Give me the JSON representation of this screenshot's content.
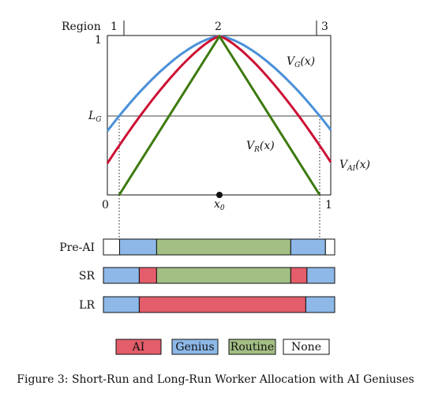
{
  "figure": {
    "region_label": "Region",
    "region_numbers": [
      "1",
      "2",
      "3"
    ],
    "y_tick_top": "1",
    "lg_label": "L",
    "lg_sub": "G",
    "x_tick_left": "0",
    "x_tick_right": "1",
    "x0_label": "x",
    "x0_sub": "0",
    "caption": "Figure 3: Short-Run and Long-Run Worker Allocation with AI Geniuses"
  },
  "curves": {
    "vg": {
      "base": "V",
      "sub": "G",
      "arg": "(x)",
      "color": "#4a90d9"
    },
    "vai": {
      "base": "V",
      "sub": "AI",
      "arg": "(x)",
      "color": "#cc1133"
    },
    "vr": {
      "base": "V",
      "sub": "R",
      "arg": "(x)",
      "color": "#3d7a0e"
    }
  },
  "allocation_rows": [
    {
      "label": "Pre-AI",
      "segments": [
        {
          "type": "None",
          "from": 0.0,
          "to": 0.07
        },
        {
          "type": "Genius",
          "from": 0.07,
          "to": 0.23
        },
        {
          "type": "Routine",
          "from": 0.23,
          "to": 0.81
        },
        {
          "type": "Genius",
          "from": 0.81,
          "to": 0.96
        },
        {
          "type": "None",
          "from": 0.96,
          "to": 1.0
        }
      ]
    },
    {
      "label": "SR",
      "segments": [
        {
          "type": "Genius",
          "from": 0.0,
          "to": 0.155
        },
        {
          "type": "AI",
          "from": 0.155,
          "to": 0.23
        },
        {
          "type": "Routine",
          "from": 0.23,
          "to": 0.81
        },
        {
          "type": "AI",
          "from": 0.81,
          "to": 0.88
        },
        {
          "type": "Genius",
          "from": 0.88,
          "to": 1.0
        }
      ]
    },
    {
      "label": "LR",
      "segments": [
        {
          "type": "Genius",
          "from": 0.0,
          "to": 0.155
        },
        {
          "type": "AI",
          "from": 0.155,
          "to": 0.875
        },
        {
          "type": "Genius",
          "from": 0.875,
          "to": 1.0
        }
      ]
    }
  ],
  "legend": [
    {
      "label": "AI",
      "color": "#e35d6a"
    },
    {
      "label": "Genius",
      "color": "#8db8e8"
    },
    {
      "label": "Routine",
      "color": "#a3bf84"
    },
    {
      "label": "None",
      "color": "#ffffff"
    }
  ]
}
